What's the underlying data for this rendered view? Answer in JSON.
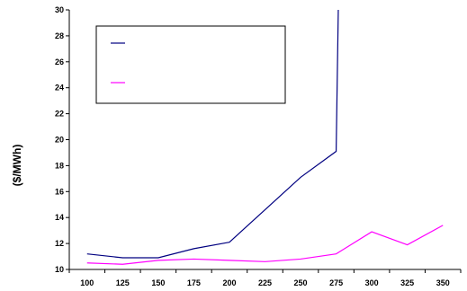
{
  "chart_data": {
    "type": "line",
    "title": "",
    "xlabel": "",
    "ylabel": "($/MWh)",
    "x": [
      100,
      125,
      150,
      175,
      200,
      225,
      250,
      275,
      300,
      325,
      350
    ],
    "xticks": [
      "100",
      "125",
      "150",
      "175",
      "200",
      "225",
      "250",
      "275",
      "300",
      "325",
      "350"
    ],
    "yticks": [
      "10",
      "12",
      "14",
      "16",
      "18",
      "20",
      "22",
      "24",
      "26",
      "28",
      "30"
    ],
    "ylim": [
      10,
      30
    ],
    "xlim": [
      87.5,
      362.5
    ],
    "grid": false,
    "legend": {
      "position": "top-left",
      "entries": [
        "",
        ""
      ]
    },
    "series": [
      {
        "color": "#000080",
        "points": [
          [
            100,
            11.2
          ],
          [
            125,
            10.9
          ],
          [
            150,
            10.9
          ],
          [
            175,
            11.6
          ],
          [
            200,
            12.1
          ],
          [
            225,
            14.6
          ],
          [
            250,
            17.1
          ],
          [
            275,
            19.1
          ],
          [
            276.5,
            30
          ]
        ]
      },
      {
        "color": "#FF00FF",
        "points": [
          [
            100,
            10.5
          ],
          [
            125,
            10.4
          ],
          [
            150,
            10.7
          ],
          [
            175,
            10.8
          ],
          [
            200,
            10.7
          ],
          [
            225,
            10.6
          ],
          [
            250,
            10.8
          ],
          [
            275,
            11.2
          ],
          [
            300,
            12.9
          ],
          [
            325,
            11.9
          ],
          [
            350,
            13.4
          ]
        ]
      }
    ]
  }
}
